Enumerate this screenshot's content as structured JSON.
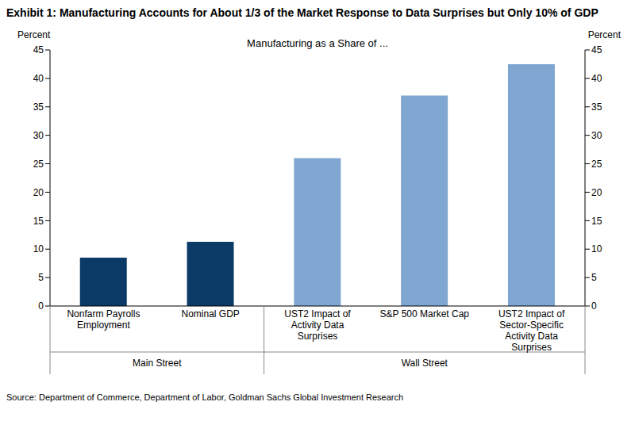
{
  "chart_data": {
    "type": "bar",
    "title": "Exhibit 1: Manufacturing Accounts for About 1/3 of the Market Response to Data Surprises but Only 10% of GDP",
    "subtitle": "Manufacturing as a Share of ...",
    "y_label": "Percent",
    "y2_label": "Percent",
    "categories": [
      "Nonfarm Payrolls Employment",
      "Nominal GDP",
      "UST2 Impact of Activity Data Surprises",
      "S&P 500 Market Cap",
      "UST2 Impact of Sector-Specific Activity Data Surprises"
    ],
    "values": [
      8.5,
      11.3,
      26,
      37,
      42.5
    ],
    "colors": [
      "#0b3a66",
      "#0b3a66",
      "#7fa6d1",
      "#7fa6d1",
      "#7fa6d1"
    ],
    "ylim": [
      0,
      45
    ],
    "yticks": [
      0,
      5,
      10,
      15,
      20,
      25,
      30,
      35,
      40,
      45
    ],
    "y2lim": [
      0,
      45
    ],
    "y2ticks": [
      0,
      5,
      10,
      15,
      20,
      25,
      30,
      35,
      40,
      45
    ],
    "grid": false,
    "groups": [
      {
        "label": "Main Street",
        "categories": [
          "Nonfarm Payrolls Employment",
          "Nominal GDP"
        ]
      },
      {
        "label": "Wall Street",
        "categories": [
          "UST2 Impact of Activity Data Surprises",
          "S&P 500 Market Cap",
          "UST2 Impact of Sector-Specific Activity Data Surprises"
        ]
      }
    ],
    "source": "Source: Department of Commerce, Department of Labor, Goldman Sachs Global Investment Research"
  }
}
